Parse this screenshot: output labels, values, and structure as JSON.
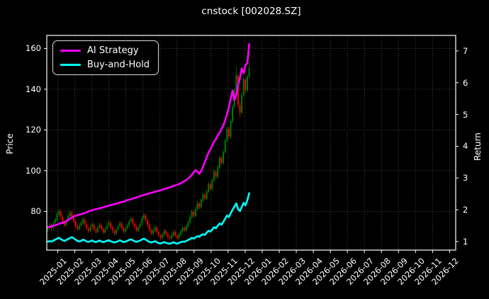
{
  "window": {
    "background_color": "#000000",
    "text_color": "#ffffff"
  },
  "chart_data": {
    "type": "candlestick+line",
    "title": "cnstock [002028.SZ]",
    "ylabel_left": "Price",
    "ylabel_right": "Return",
    "grid": true,
    "grid_style": "dotted",
    "grid_color": "#4d4d4d",
    "spine_color": "#ffffff",
    "legend_position": "upper left",
    "legend": [
      "AI Strategy",
      "Buy-and-Hold"
    ],
    "x_tick_labels": [
      "2025-01",
      "2025-02",
      "2025-03",
      "2025-04",
      "2025-05",
      "2025-06",
      "2025-07",
      "2025-08",
      "2025-09",
      "2025-10",
      "2025-11",
      "2025-12",
      "2026-01",
      "2026-02",
      "2026-03",
      "2026-04",
      "2026-05",
      "2026-06",
      "2026-07",
      "2026-08",
      "2026-09",
      "2026-10",
      "2026-11",
      "2026-12"
    ],
    "y_left_ticks": [
      80,
      100,
      120,
      140,
      160
    ],
    "y_left_range": [
      61.0,
      166.4
    ],
    "y_right_ticks": [
      1,
      2,
      3,
      4,
      5,
      6,
      7
    ],
    "y_right_range": [
      0.73,
      7.49
    ],
    "x_data_start_month": "2025-01",
    "x_data_end_month": "2025-12",
    "series": [
      {
        "name": "AI Strategy",
        "axis": "right",
        "color": "#ff00ff",
        "values": [
          1.45,
          1.46,
          1.48,
          1.5,
          1.51,
          1.53,
          1.56,
          1.58,
          1.59,
          1.61,
          1.63,
          1.68,
          1.72,
          1.76,
          1.79,
          1.81,
          1.83,
          1.85,
          1.86,
          1.88,
          1.9,
          1.92,
          1.95,
          1.97,
          1.99,
          2.0,
          2.02,
          2.03,
          2.05,
          2.06,
          2.08,
          2.1,
          2.11,
          2.13,
          2.15,
          2.16,
          2.18,
          2.19,
          2.21,
          2.23,
          2.24,
          2.26,
          2.28,
          2.3,
          2.32,
          2.33,
          2.35,
          2.37,
          2.39,
          2.41,
          2.43,
          2.45,
          2.47,
          2.48,
          2.5,
          2.52,
          2.53,
          2.55,
          2.57,
          2.58,
          2.6,
          2.62,
          2.63,
          2.65,
          2.67,
          2.69,
          2.71,
          2.73,
          2.75,
          2.77,
          2.79,
          2.81,
          2.84,
          2.87,
          2.9,
          2.94,
          2.99,
          3.04,
          3.1,
          3.18,
          3.25,
          3.2,
          3.13,
          3.22,
          3.35,
          3.5,
          3.65,
          3.8,
          3.9,
          4.02,
          4.15,
          4.22,
          4.35,
          4.42,
          4.55,
          4.65,
          4.82,
          5.02,
          5.22,
          5.5,
          5.75,
          5.45,
          5.62,
          5.92,
          6.15,
          6.45,
          6.3,
          6.55,
          6.62,
          7.22
        ]
      },
      {
        "name": "Buy-and-Hold",
        "axis": "right",
        "color": "#00ffff",
        "values": [
          1.0,
          1.01,
          1.0,
          1.03,
          1.06,
          1.09,
          1.12,
          1.08,
          1.04,
          1.02,
          1.05,
          1.08,
          1.11,
          1.14,
          1.1,
          1.06,
          1.02,
          1.0,
          1.02,
          1.06,
          1.04,
          1.0,
          0.99,
          1.01,
          1.03,
          1.0,
          0.98,
          1.01,
          1.03,
          1.0,
          0.98,
          1.0,
          1.02,
          1.04,
          1.01,
          0.99,
          0.97,
          0.99,
          1.01,
          1.04,
          1.01,
          0.98,
          1.0,
          1.02,
          1.05,
          1.07,
          1.04,
          1.01,
          0.99,
          1.01,
          1.03,
          1.07,
          1.09,
          1.06,
          1.02,
          0.99,
          0.97,
          0.99,
          1.01,
          0.98,
          0.95,
          0.94,
          0.96,
          0.98,
          0.96,
          0.94,
          0.93,
          0.95,
          0.98,
          0.95,
          0.93,
          0.96,
          0.98,
          1.0,
          0.99,
          1.02,
          1.05,
          1.08,
          1.12,
          1.09,
          1.13,
          1.17,
          1.15,
          1.2,
          1.23,
          1.21,
          1.28,
          1.34,
          1.31,
          1.38,
          1.45,
          1.42,
          1.5,
          1.57,
          1.53,
          1.62,
          1.72,
          1.82,
          1.77,
          1.89,
          2.0,
          2.1,
          2.2,
          2.02,
          1.96,
          2.09,
          2.22,
          2.14,
          2.3,
          2.52
        ]
      }
    ],
    "candles": {
      "axis": "left",
      "up_color": "#008000",
      "down_color": "#ff0000",
      "ohlc": [
        [
          71.0,
          73.1,
          69.8,
          72.0
        ],
        [
          72.2,
          74.6,
          71.2,
          73.4
        ],
        [
          73.2,
          74.0,
          70.4,
          71.6
        ],
        [
          71.8,
          75.0,
          70.9,
          74.1
        ],
        [
          74.3,
          77.2,
          73.6,
          76.2
        ],
        [
          76.0,
          79.6,
          75.1,
          78.6
        ],
        [
          78.4,
          81.2,
          77.3,
          80.1
        ],
        [
          79.8,
          80.9,
          76.2,
          77.4
        ],
        [
          77.2,
          78.3,
          73.9,
          74.8
        ],
        [
          74.6,
          75.8,
          72.1,
          73.2
        ],
        [
          73.4,
          76.4,
          72.6,
          75.4
        ],
        [
          75.6,
          78.8,
          74.7,
          77.8
        ],
        [
          77.6,
          80.7,
          76.8,
          79.6
        ],
        [
          79.4,
          80.5,
          76.6,
          77.7
        ],
        [
          77.5,
          78.6,
          74.1,
          75.2
        ],
        [
          75.0,
          76.1,
          71.8,
          72.8
        ],
        [
          72.6,
          73.8,
          70.3,
          71.5
        ],
        [
          71.3,
          74.1,
          70.5,
          73.0
        ],
        [
          73.2,
          75.6,
          72.2,
          74.5
        ],
        [
          74.3,
          77.0,
          73.4,
          76.0
        ],
        [
          75.8,
          76.9,
          72.8,
          73.8
        ],
        [
          73.6,
          74.7,
          70.6,
          71.7
        ],
        [
          71.5,
          72.6,
          69.4,
          70.5
        ],
        [
          70.3,
          73.2,
          69.6,
          72.2
        ],
        [
          72.4,
          74.6,
          71.4,
          73.6
        ],
        [
          73.4,
          74.3,
          70.2,
          71.3
        ],
        [
          71.1,
          72.2,
          69.1,
          70.2
        ],
        [
          70.0,
          73.0,
          69.3,
          72.0
        ],
        [
          72.2,
          74.4,
          71.2,
          73.4
        ],
        [
          73.2,
          74.2,
          70.5,
          71.6
        ],
        [
          71.4,
          72.4,
          68.7,
          69.8
        ],
        [
          69.6,
          72.3,
          68.8,
          71.3
        ],
        [
          71.5,
          74.2,
          70.6,
          73.2
        ],
        [
          73.4,
          75.6,
          72.4,
          74.6
        ],
        [
          74.4,
          75.4,
          71.2,
          72.3
        ],
        [
          72.1,
          73.1,
          69.5,
          70.6
        ],
        [
          70.4,
          71.4,
          68.2,
          69.3
        ],
        [
          69.1,
          72.0,
          68.4,
          71.0
        ],
        [
          71.2,
          73.6,
          70.2,
          72.6
        ],
        [
          72.8,
          75.3,
          71.8,
          74.3
        ],
        [
          74.1,
          75.1,
          71.0,
          72.0
        ],
        [
          71.8,
          72.8,
          69.2,
          70.3
        ],
        [
          70.1,
          72.5,
          69.4,
          71.5
        ],
        [
          71.7,
          74.0,
          70.7,
          73.0
        ],
        [
          73.2,
          76.1,
          72.2,
          75.1
        ],
        [
          75.3,
          77.5,
          74.3,
          76.5
        ],
        [
          76.3,
          77.3,
          73.1,
          74.2
        ],
        [
          74.0,
          75.0,
          71.4,
          72.5
        ],
        [
          72.3,
          73.3,
          69.7,
          70.8
        ],
        [
          70.6,
          73.3,
          69.9,
          72.3
        ],
        [
          72.5,
          75.0,
          71.5,
          74.0
        ],
        [
          74.2,
          77.8,
          73.2,
          76.8
        ],
        [
          76.6,
          79.1,
          75.6,
          78.1
        ],
        [
          77.9,
          78.9,
          74.6,
          75.7
        ],
        [
          75.5,
          76.5,
          72.2,
          73.3
        ],
        [
          73.1,
          74.1,
          70.0,
          71.1
        ],
        [
          70.9,
          71.9,
          68.2,
          69.3
        ],
        [
          69.1,
          71.7,
          68.4,
          70.7
        ],
        [
          70.5,
          73.2,
          69.7,
          72.2
        ],
        [
          72.0,
          73.0,
          69.0,
          70.0
        ],
        [
          69.8,
          70.8,
          67.2,
          68.3
        ],
        [
          68.1,
          69.1,
          66.1,
          67.2
        ],
        [
          67.0,
          69.8,
          66.3,
          68.8
        ],
        [
          68.6,
          71.5,
          67.8,
          70.5
        ],
        [
          70.3,
          71.3,
          68.0,
          69.0
        ],
        [
          68.8,
          69.8,
          66.4,
          67.5
        ],
        [
          67.3,
          68.3,
          65.8,
          66.9
        ],
        [
          66.7,
          69.4,
          66.0,
          68.4
        ],
        [
          68.2,
          71.0,
          67.4,
          70.0
        ],
        [
          69.8,
          70.8,
          67.1,
          68.2
        ],
        [
          68.0,
          69.0,
          66.0,
          67.0
        ],
        [
          66.8,
          69.7,
          66.1,
          68.7
        ],
        [
          68.5,
          71.4,
          67.7,
          70.4
        ],
        [
          70.2,
          73.0,
          69.4,
          72.0
        ],
        [
          71.8,
          72.8,
          69.9,
          70.9
        ],
        [
          70.7,
          73.8,
          70.0,
          72.8
        ],
        [
          72.6,
          75.9,
          71.8,
          74.9
        ],
        [
          74.7,
          78.3,
          73.9,
          77.3
        ],
        [
          77.1,
          80.9,
          76.3,
          79.9
        ],
        [
          79.7,
          80.7,
          77.0,
          78.0
        ],
        [
          77.8,
          82.2,
          77.1,
          81.2
        ],
        [
          81.0,
          85.0,
          80.2,
          84.0
        ],
        [
          83.8,
          84.8,
          81.1,
          82.1
        ],
        [
          81.9,
          86.6,
          81.2,
          85.6
        ],
        [
          85.4,
          89.3,
          84.6,
          88.3
        ],
        [
          88.1,
          89.1,
          85.4,
          86.4
        ],
        [
          86.2,
          90.8,
          85.5,
          89.8
        ],
        [
          89.6,
          94.4,
          88.8,
          93.4
        ],
        [
          93.2,
          94.2,
          90.2,
          91.2
        ],
        [
          91.0,
          96.3,
          90.3,
          95.3
        ],
        [
          95.1,
          100.6,
          94.3,
          99.6
        ],
        [
          99.4,
          100.4,
          96.1,
          97.1
        ],
        [
          96.9,
          102.8,
          96.2,
          101.8
        ],
        [
          101.6,
          107.4,
          100.8,
          106.4
        ],
        [
          106.2,
          107.2,
          102.9,
          103.9
        ],
        [
          103.7,
          110.3,
          103.0,
          109.3
        ],
        [
          109.1,
          115.8,
          108.3,
          114.8
        ],
        [
          114.6,
          121.6,
          113.8,
          120.6
        ],
        [
          120.4,
          121.4,
          115.9,
          116.9
        ],
        [
          116.7,
          125.3,
          115.9,
          124.3
        ],
        [
          124.1,
          132.6,
          123.3,
          131.6
        ],
        [
          131.4,
          140.4,
          130.6,
          139.4
        ],
        [
          139.2,
          150.9,
          138.3,
          146.8
        ],
        [
          146.6,
          147.6,
          130.9,
          132.4
        ],
        [
          132.2,
          134.0,
          126.5,
          128.7
        ],
        [
          128.5,
          138.2,
          127.7,
          137.2
        ],
        [
          137.0,
          146.1,
          136.2,
          144.9
        ],
        [
          144.7,
          145.7,
          137.9,
          139.6
        ],
        [
          139.4,
          147.5,
          138.6,
          146.3
        ],
        [
          146.1,
          153.4,
          145.3,
          150.2
        ]
      ]
    }
  }
}
